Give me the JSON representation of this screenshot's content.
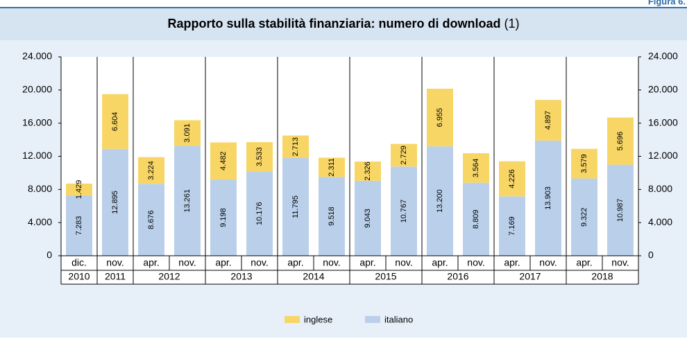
{
  "figure_label": "Figura 6.",
  "chart_data": {
    "type": "stacked_bar",
    "title": "Rapporto sulla stabilità finanziaria: numero di download",
    "title_note": "(1)",
    "groups": [
      {
        "name": "2010",
        "categories": [
          "dic."
        ]
      },
      {
        "name": "2011",
        "categories": [
          "nov."
        ]
      },
      {
        "name": "2012",
        "categories": [
          "apr.",
          "nov."
        ]
      },
      {
        "name": "2013",
        "categories": [
          "apr.",
          "nov."
        ]
      },
      {
        "name": "2014",
        "categories": [
          "apr.",
          "nov."
        ]
      },
      {
        "name": "2015",
        "categories": [
          "apr.",
          "nov."
        ]
      },
      {
        "name": "2016",
        "categories": [
          "apr.",
          "nov."
        ]
      },
      {
        "name": "2017",
        "categories": [
          "apr.",
          "nov."
        ]
      },
      {
        "name": "2018",
        "categories": [
          "apr.",
          "nov."
        ]
      }
    ],
    "series": [
      {
        "name": "inglese",
        "color": "#f8d666",
        "values": [
          1429,
          6604,
          3224,
          3091,
          4482,
          3533,
          2713,
          2311,
          2326,
          2729,
          6955,
          3564,
          4226,
          4897,
          3579,
          5696
        ],
        "value_labels": [
          "1.429",
          "6.604",
          "3.224",
          "3.091",
          "4.482",
          "3.533",
          "2.713",
          "2.311",
          "2.326",
          "2.729",
          "6.955",
          "3.564",
          "4.226",
          "4.897",
          "3.579",
          "5.696"
        ]
      },
      {
        "name": "italiano",
        "color": "#bad0ea",
        "values": [
          7283,
          12895,
          8676,
          13261,
          9198,
          10176,
          11795,
          9518,
          9043,
          10767,
          13200,
          8809,
          7169,
          13903,
          9322,
          10987
        ],
        "value_labels": [
          "7.283",
          "12.895",
          "8.676",
          "13.261",
          "9.198",
          "10.176",
          "11.795",
          "9.518",
          "9.043",
          "10.767",
          "13.200",
          "8.809",
          "7.169",
          "13.903",
          "9.322",
          "10.987"
        ]
      }
    ],
    "ylim": [
      0,
      24000
    ],
    "yticks": [
      0,
      {
        "value": 4000,
        "label": "4.000"
      },
      {
        "value": 8000,
        "label": "8.000"
      },
      {
        "value": 12000,
        "label": "12.000"
      },
      {
        "value": 16000,
        "label": "16.000"
      },
      {
        "value": 20000,
        "label": "20.000"
      },
      {
        "value": 24000,
        "label": "24.000"
      }
    ],
    "y2lim": [
      0,
      24000
    ],
    "y2ticks": [
      0,
      {
        "value": 4000,
        "label": "4.000"
      },
      {
        "value": 8000,
        "label": "8.000"
      },
      {
        "value": 12000,
        "label": "12.000"
      },
      {
        "value": 16000,
        "label": "16.000"
      },
      {
        "value": 20000,
        "label": "20.000"
      },
      {
        "value": 24000,
        "label": "24.000"
      }
    ],
    "grid": false,
    "legend": "bottom"
  }
}
